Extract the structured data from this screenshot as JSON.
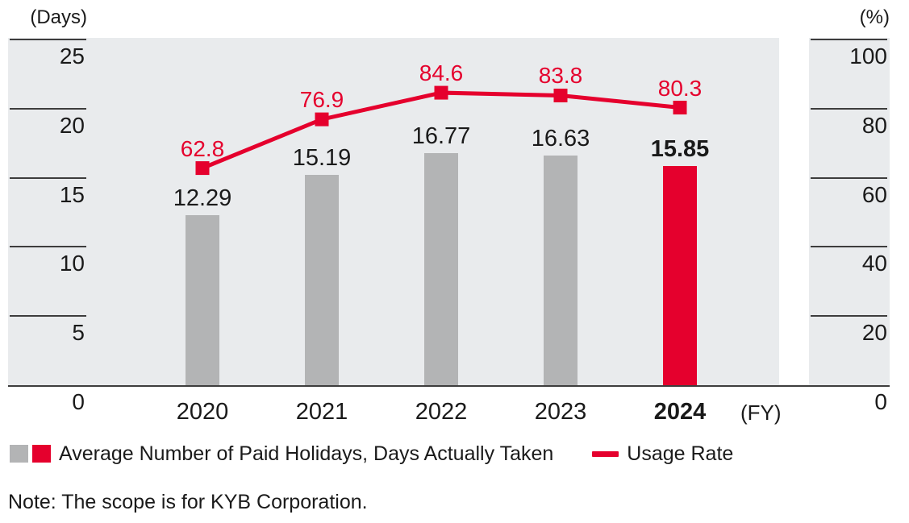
{
  "colors": {
    "plot_background": "#e9ebed",
    "bar_gray": "#b3b4b5",
    "accent_red": "#e5002d",
    "axis_line": "#3d3d3d",
    "text": "#1a1a1a"
  },
  "left_axis": {
    "unit": "(Days)",
    "ticks": [
      "0",
      "5",
      "10",
      "15",
      "20",
      "25"
    ]
  },
  "right_axis": {
    "unit": "(%)",
    "ticks": [
      "0",
      "20",
      "40",
      "60",
      "80",
      "100"
    ]
  },
  "x_axis": {
    "unit": "(FY)"
  },
  "legend": {
    "bars_label": "Average Number of Paid Holidays, Days Actually Taken",
    "line_label": "Usage Rate"
  },
  "note": "Note: The scope is for KYB Corporation.",
  "chart_data": {
    "type": "combo-bar-line",
    "categories": [
      "2020",
      "2021",
      "2022",
      "2023",
      "2024"
    ],
    "highlight_category": "2024",
    "series": [
      {
        "name": "Average Number of Paid Holidays, Days Actually Taken",
        "type": "bar",
        "axis": "left",
        "values": [
          12.29,
          15.19,
          16.77,
          16.63,
          15.85
        ],
        "labels": [
          "12.29",
          "15.19",
          "16.77",
          "16.63",
          "15.85"
        ]
      },
      {
        "name": "Usage Rate",
        "type": "line",
        "axis": "right",
        "values": [
          62.8,
          76.9,
          84.6,
          83.8,
          80.3
        ],
        "labels": [
          "62.8",
          "76.9",
          "84.6",
          "83.8",
          "80.3"
        ]
      }
    ],
    "left_ylabel": "(Days)",
    "left_ylim": [
      0,
      25
    ],
    "left_tick_step": 5,
    "right_ylabel": "(%)",
    "right_ylim": [
      0,
      100
    ],
    "right_tick_step": 20,
    "xlabel": "(FY)",
    "grid": false,
    "legend_position": "bottom"
  }
}
